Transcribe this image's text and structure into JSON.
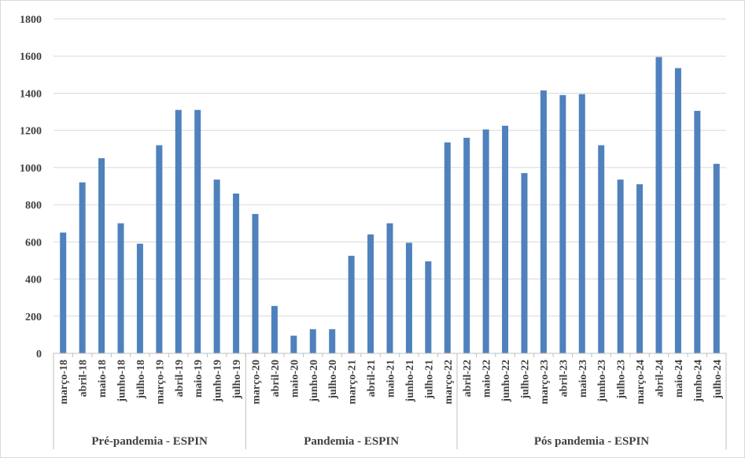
{
  "chart_data": {
    "type": "bar",
    "ylim": [
      0,
      1800
    ],
    "yticks": [
      0,
      200,
      400,
      600,
      800,
      1000,
      1200,
      1400,
      1600,
      1800
    ],
    "grid": true,
    "bar_color": "#4f81bd",
    "categories": [
      "março-18",
      "abril-18",
      "maio-18",
      "junho-18",
      "julho-18",
      "março-19",
      "abril-19",
      "maio-19",
      "junho-19",
      "julho-19",
      "março-20",
      "abril-20",
      "maio-20",
      "junho-20",
      "julho-20",
      "março-21",
      "abril-21",
      "maio-21",
      "junho-21",
      "julho-21",
      "março-22",
      "abril-22",
      "maio-22",
      "junho-22",
      "julho-22",
      "março-23",
      "abril-23",
      "maio-23",
      "junho-23",
      "julho-23",
      "março-24",
      "abril-24",
      "maio-24",
      "junho-24",
      "julho-24"
    ],
    "values": [
      650,
      920,
      1050,
      700,
      590,
      1120,
      1310,
      1310,
      935,
      860,
      750,
      255,
      95,
      130,
      130,
      525,
      640,
      700,
      595,
      495,
      1135,
      1160,
      1205,
      1225,
      970,
      1415,
      1390,
      1395,
      1120,
      935,
      910,
      1595,
      1535,
      1305,
      1020
    ],
    "groups": [
      {
        "label": "Pré-pandemia - ESPIN",
        "start": 0,
        "end": 9
      },
      {
        "label": "Pandemia - ESPIN",
        "start": 10,
        "end": 20
      },
      {
        "label": "Pós pandemia - ESPIN",
        "start": 21,
        "end": 34
      }
    ]
  }
}
